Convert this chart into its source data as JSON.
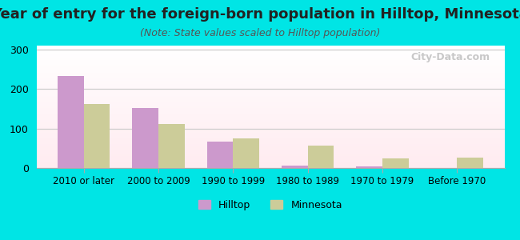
{
  "title": "Year of entry for the foreign-born population in Hilltop, Minnesota",
  "subtitle": "(Note: State values scaled to Hilltop population)",
  "categories": [
    "2010 or later",
    "2000 to 2009",
    "1990 to 1999",
    "1980 to 1989",
    "1970 to 1979",
    "Before 1970"
  ],
  "hilltop_values": [
    233,
    152,
    67,
    7,
    4,
    0
  ],
  "minnesota_values": [
    163,
    112,
    74,
    57,
    25,
    27
  ],
  "hilltop_color": "#cc99cc",
  "minnesota_color": "#cccc99",
  "background_color": "#00e5e5",
  "ylim": [
    0,
    310
  ],
  "yticks": [
    0,
    100,
    200,
    300
  ],
  "bar_width": 0.35,
  "title_fontsize": 13,
  "subtitle_fontsize": 9,
  "watermark": "City-Data.com"
}
